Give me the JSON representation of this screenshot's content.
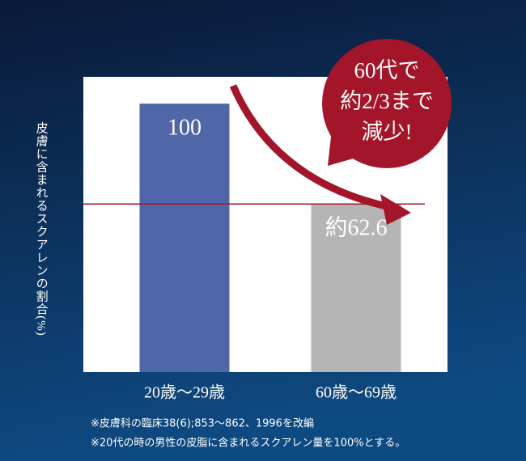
{
  "chart_data": {
    "type": "bar",
    "y_label": "皮膚に含まれるスクアレンの割合(%)",
    "categories": [
      "20歳～29歳",
      "60歳～69歳"
    ],
    "values": [
      100,
      62.6
    ],
    "value_labels": [
      "100",
      "約62.6"
    ],
    "colors": [
      "#4f67a8",
      "#b5b5b5"
    ],
    "ylim": [
      0,
      110
    ],
    "annotation": [
      "60代で",
      "約2/3まで",
      "減少!"
    ],
    "footnotes": [
      "※皮膚科の臨床38(6);853～862、1996を改編",
      "※20代の時の男性の皮脂に含まれるスクアレン量を100%とする。"
    ]
  }
}
